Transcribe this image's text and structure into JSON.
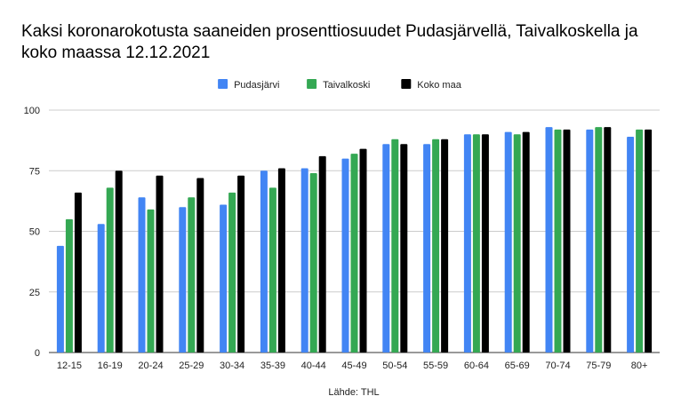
{
  "chart_data": {
    "type": "bar",
    "title": "Kaksi koronarokotusta saaneiden prosenttiosuudet Pudasjärvellä, Taivalkoskella ja koko maassa 12.12.2021",
    "xlabel": "Lähde: THL",
    "ylabel": "",
    "ylim": [
      0,
      100
    ],
    "yticks": [
      "0",
      "25",
      "50",
      "75",
      "100"
    ],
    "grid": true,
    "legend": "top",
    "categories": [
      "12-15",
      "16-19",
      "20-24",
      "25-29",
      "30-34",
      "35-39",
      "40-44",
      "45-49",
      "50-54",
      "55-59",
      "60-64",
      "65-69",
      "70-74",
      "75-79",
      "80+"
    ],
    "series": [
      {
        "name": "Pudasjärvi",
        "color": "#4285f4",
        "values": [
          44,
          53,
          64,
          60,
          61,
          75,
          76,
          80,
          86,
          86,
          90,
          91,
          93,
          92,
          89
        ]
      },
      {
        "name": "Taivalkoski",
        "color": "#34a853",
        "values": [
          55,
          68,
          59,
          64,
          66,
          68,
          74,
          82,
          88,
          88,
          90,
          90,
          92,
          93,
          92
        ]
      },
      {
        "name": "Koko maa",
        "color": "#000000",
        "values": [
          66,
          75,
          73,
          72,
          73,
          76,
          81,
          84,
          86,
          88,
          90,
          91,
          92,
          93,
          92
        ]
      }
    ]
  }
}
